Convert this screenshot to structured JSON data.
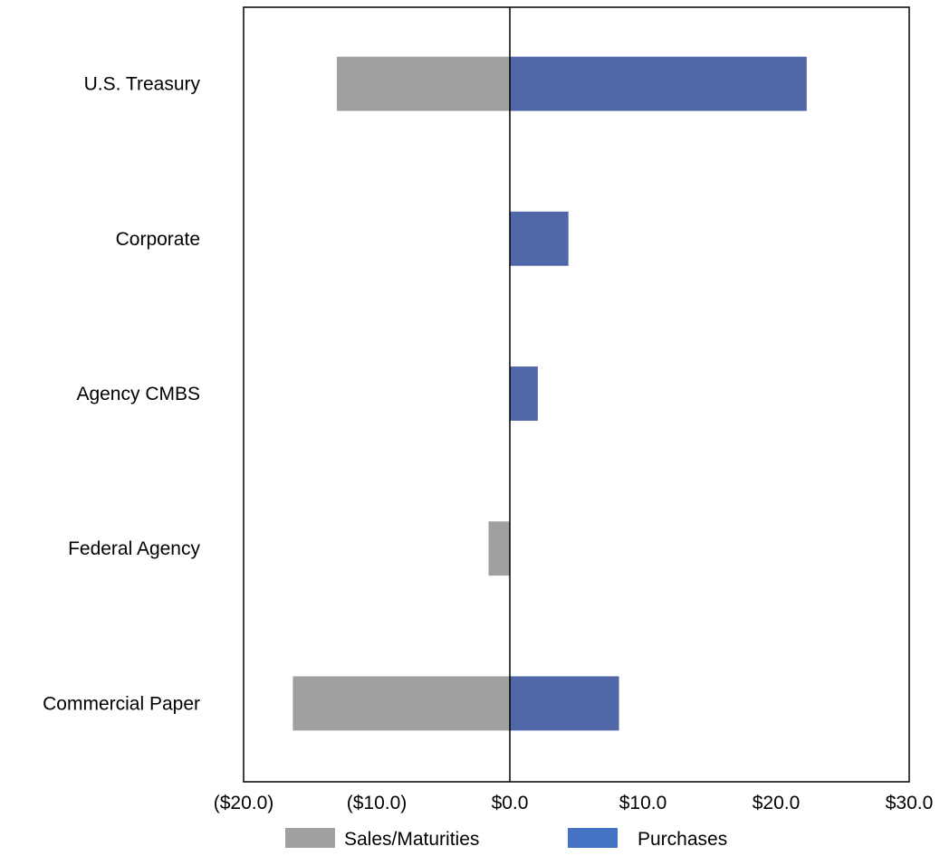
{
  "chart_data": {
    "type": "bar",
    "orientation": "horizontal",
    "stacked": "diverging",
    "categories": [
      "U.S. Treasury",
      "Corporate",
      "Agency CMBS",
      "Federal Agency",
      "Commercial Paper"
    ],
    "series": [
      {
        "name": "Sales/Maturities",
        "color": "#a0a0a0",
        "values": [
          -13.0,
          0,
          0,
          -1.6,
          -16.3
        ]
      },
      {
        "name": "Purchases",
        "color": "#5068a8",
        "values": [
          22.3,
          4.4,
          2.1,
          0,
          8.2
        ]
      }
    ],
    "xlim": [
      -20,
      30
    ],
    "xticks": [
      -20,
      -10,
      0,
      10,
      20,
      30
    ],
    "xtick_labels": [
      "($20.0)",
      "($10.0)",
      "$0.0",
      "$10.0",
      "$20.0",
      "$30.0"
    ],
    "title": "",
    "xlabel": "",
    "ylabel": "",
    "grid": false,
    "legend_position": "bottom",
    "legend_swatch_colors": [
      "#a0a0a0",
      "#4472c4"
    ]
  }
}
